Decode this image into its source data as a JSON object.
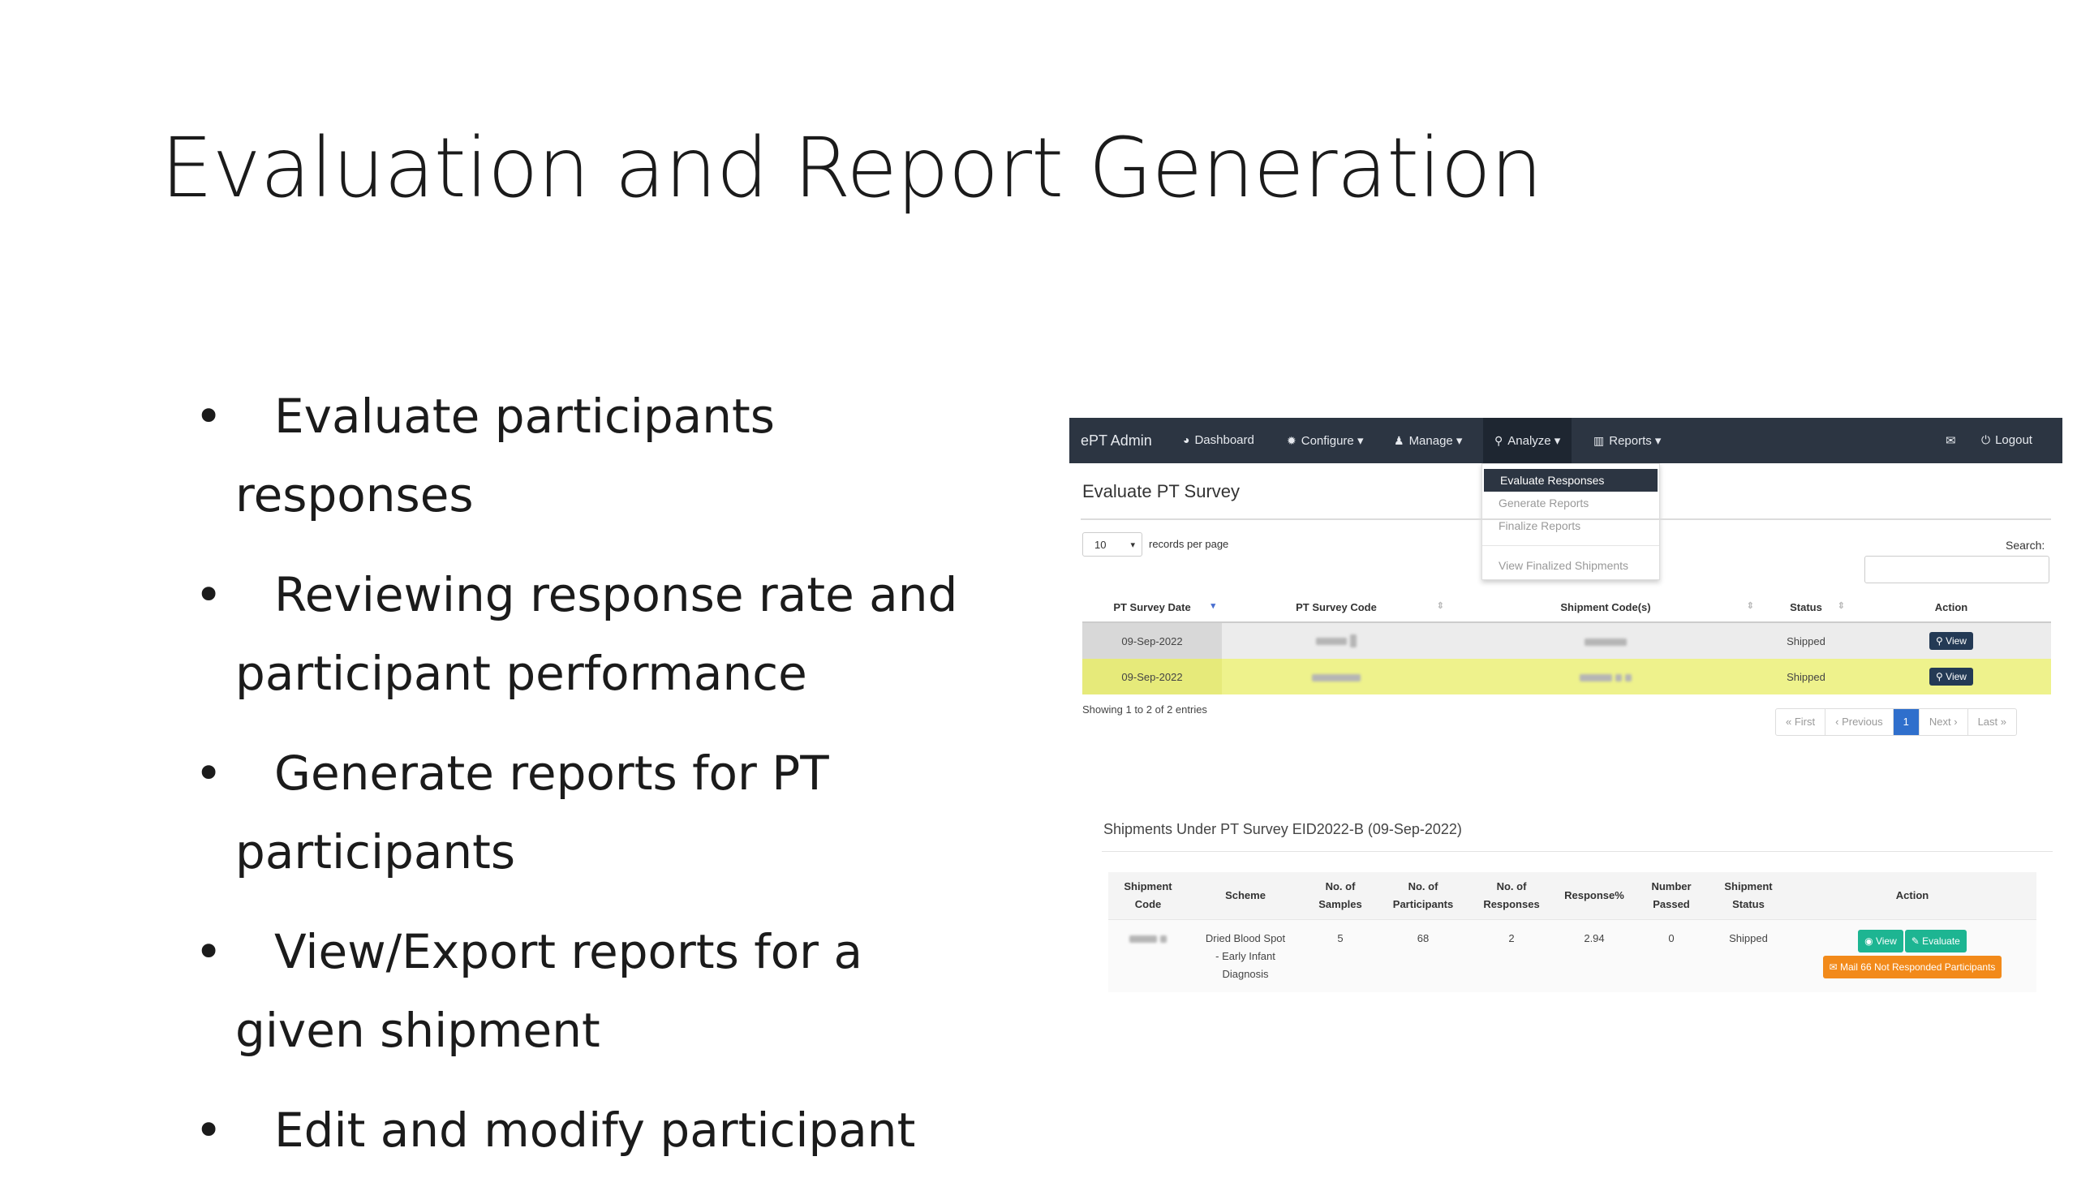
{
  "slide": {
    "title": "Evaluation and Report Generation",
    "bullets": [
      {
        "first": "Evaluate participants",
        "rest": "responses"
      },
      {
        "first": "Reviewing response rate and",
        "rest": "participant performance"
      },
      {
        "first": "Generate reports for PT",
        "rest": "participants"
      },
      {
        "first": "View/Export reports for a",
        "rest": "given shipment"
      },
      {
        "first": "Edit and modify participant",
        "rest": ""
      }
    ],
    "bullet_glyph": "•"
  },
  "app": {
    "nav": {
      "brand": "ePT Admin",
      "items": [
        {
          "label": "Dashboard",
          "icon": "dashboard-icon",
          "glyph": "◕"
        },
        {
          "label": "Configure ▾",
          "icon": "gear-icon",
          "glyph": "✹"
        },
        {
          "label": "Manage ▾",
          "icon": "user-icon",
          "glyph": "♟"
        },
        {
          "label": "Analyze ▾",
          "icon": "search-icon",
          "glyph": "⚲"
        },
        {
          "label": "Reports ▾",
          "icon": "bar-chart-icon",
          "glyph": "▥"
        }
      ],
      "mail_glyph": "✉",
      "logout": "Logout",
      "logout_glyph": "⏻"
    },
    "analyze_menu": [
      "Evaluate Responses",
      "Generate Reports",
      "Finalize Reports",
      "View Finalized Shipments"
    ],
    "page_title": "Evaluate PT Survey",
    "page_length": "10",
    "records_per_page": "records per page",
    "search_label": "Search:",
    "survey_table": {
      "headers": [
        "PT Survey Date",
        "PT Survey Code",
        "Shipment Code(s)",
        "Status",
        "Action"
      ],
      "rows": [
        {
          "date": "09-Sep-2022",
          "status": "Shipped",
          "action": "View"
        },
        {
          "date": "09-Sep-2022",
          "status": "Shipped",
          "action": "View"
        }
      ]
    },
    "showing": "Showing 1 to 2 of 2 entries",
    "pager": [
      "« First",
      "‹ Previous",
      "1",
      "Next ›",
      "Last »"
    ],
    "shipments_title": "Shipments Under PT Survey EID2022-B (09-Sep-2022)",
    "shipment_table": {
      "headers": [
        [
          "Shipment",
          "Code"
        ],
        [
          "Scheme",
          ""
        ],
        [
          "No. of",
          "Samples"
        ],
        [
          "No. of",
          "Participants"
        ],
        [
          "No. of",
          "Responses"
        ],
        [
          "Response%",
          ""
        ],
        [
          "Number",
          "Passed"
        ],
        [
          "Shipment",
          "Status"
        ],
        [
          "Action",
          ""
        ]
      ],
      "row": {
        "scheme": [
          "Dried Blood Spot",
          "- Early Infant",
          "Diagnosis"
        ],
        "samples": "5",
        "participants": "68",
        "responses": "2",
        "response_pct": "2.94",
        "passed": "0",
        "status": "Shipped",
        "btn_view": "View",
        "btn_evaluate": "Evaluate",
        "btn_mail": "Mail 66 Not Responded Participants"
      }
    }
  }
}
